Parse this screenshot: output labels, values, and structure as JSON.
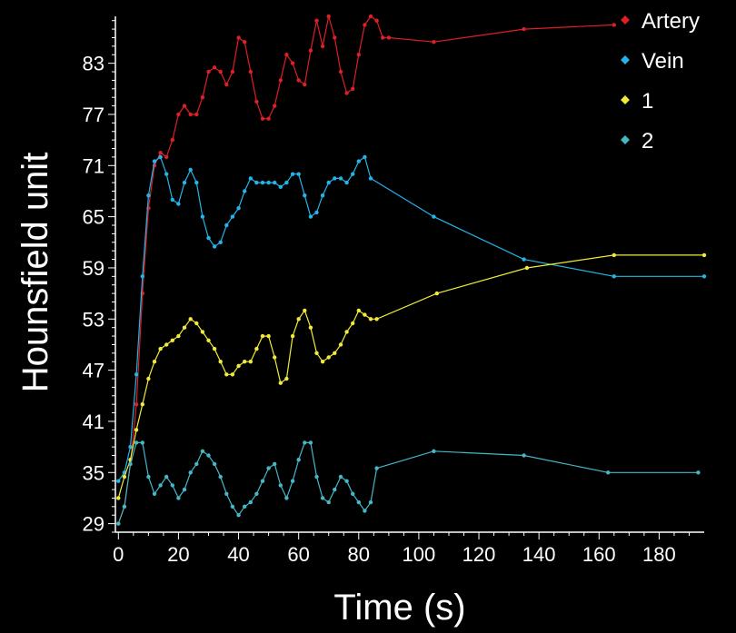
{
  "chart_data": {
    "type": "line",
    "title": "",
    "xlabel": "Time (s)",
    "ylabel": "Hounsfield unit",
    "xlim": [
      -1,
      195
    ],
    "ylim": [
      28,
      88.5
    ],
    "xticks": [
      0,
      20,
      40,
      60,
      80,
      100,
      120,
      140,
      160,
      180
    ],
    "yticks": [
      29,
      35,
      41,
      47,
      53,
      59,
      65,
      71,
      77,
      83
    ],
    "xtick_labels": [
      "0",
      "20",
      "40",
      "60",
      "80",
      "100",
      "120",
      "140",
      "160",
      "180"
    ],
    "ytick_labels": [
      "29",
      "35",
      "41",
      "47",
      "53",
      "59",
      "65",
      "71",
      "77",
      "83"
    ],
    "grid": false,
    "legend_position": "top-right",
    "background": "#000000",
    "series": [
      {
        "name": "Artery",
        "color": "#dd1f26",
        "points": [
          [
            0,
            29
          ],
          [
            2,
            31
          ],
          [
            4,
            36
          ],
          [
            6,
            43
          ],
          [
            8,
            56
          ],
          [
            10,
            66
          ],
          [
            12,
            71
          ],
          [
            14,
            72.5
          ],
          [
            16,
            72
          ],
          [
            18,
            74
          ],
          [
            20,
            77
          ],
          [
            22,
            78
          ],
          [
            24,
            77
          ],
          [
            26,
            77
          ],
          [
            28,
            79
          ],
          [
            30,
            82
          ],
          [
            32,
            82.5
          ],
          [
            34,
            82
          ],
          [
            36,
            80.5
          ],
          [
            38,
            82
          ],
          [
            40,
            86
          ],
          [
            42,
            85.5
          ],
          [
            44,
            82
          ],
          [
            46,
            78.5
          ],
          [
            48,
            76.5
          ],
          [
            50,
            76.5
          ],
          [
            52,
            78
          ],
          [
            54,
            81
          ],
          [
            56,
            84
          ],
          [
            58,
            83
          ],
          [
            60,
            81
          ],
          [
            62,
            80.5
          ],
          [
            64,
            84.5
          ],
          [
            66,
            88
          ],
          [
            68,
            85
          ],
          [
            70,
            88.5
          ],
          [
            72,
            86
          ],
          [
            74,
            82
          ],
          [
            76,
            79.5
          ],
          [
            78,
            80
          ],
          [
            80,
            84
          ],
          [
            82,
            87.5
          ],
          [
            84,
            88.5
          ],
          [
            86,
            88
          ],
          [
            88,
            86
          ],
          [
            90,
            86
          ],
          [
            105,
            85.5
          ],
          [
            135,
            87
          ],
          [
            165,
            87.5
          ]
        ]
      },
      {
        "name": "Vein",
        "color": "#23b4e8",
        "points": [
          [
            0,
            34
          ],
          [
            2,
            35
          ],
          [
            4,
            38
          ],
          [
            6,
            46.5
          ],
          [
            8,
            58
          ],
          [
            10,
            67.5
          ],
          [
            12,
            71.5
          ],
          [
            14,
            72
          ],
          [
            16,
            70
          ],
          [
            18,
            67
          ],
          [
            20,
            66.5
          ],
          [
            22,
            69
          ],
          [
            24,
            70.5
          ],
          [
            26,
            69
          ],
          [
            28,
            65
          ],
          [
            30,
            62.5
          ],
          [
            32,
            61.5
          ],
          [
            34,
            62
          ],
          [
            36,
            64
          ],
          [
            38,
            65
          ],
          [
            40,
            66
          ],
          [
            42,
            68
          ],
          [
            44,
            69.5
          ],
          [
            46,
            69
          ],
          [
            48,
            69
          ],
          [
            50,
            69
          ],
          [
            52,
            69
          ],
          [
            54,
            68.5
          ],
          [
            56,
            69
          ],
          [
            58,
            70
          ],
          [
            60,
            70
          ],
          [
            62,
            67.5
          ],
          [
            64,
            65
          ],
          [
            66,
            65.5
          ],
          [
            68,
            67.5
          ],
          [
            70,
            69
          ],
          [
            72,
            69.5
          ],
          [
            74,
            69.5
          ],
          [
            76,
            69
          ],
          [
            78,
            70
          ],
          [
            80,
            71.5
          ],
          [
            82,
            72
          ],
          [
            84,
            69.5
          ],
          [
            105,
            65
          ],
          [
            135,
            60
          ],
          [
            165,
            58
          ],
          [
            195,
            58
          ]
        ]
      },
      {
        "name": "1",
        "color": "#f2ea3a",
        "points": [
          [
            0,
            32
          ],
          [
            2,
            34.5
          ],
          [
            4,
            36.5
          ],
          [
            6,
            40
          ],
          [
            8,
            43
          ],
          [
            10,
            46
          ],
          [
            12,
            48
          ],
          [
            14,
            49.5
          ],
          [
            16,
            50
          ],
          [
            18,
            50.5
          ],
          [
            20,
            51
          ],
          [
            22,
            52
          ],
          [
            24,
            53
          ],
          [
            26,
            52.5
          ],
          [
            28,
            51.5
          ],
          [
            30,
            50.5
          ],
          [
            32,
            49.5
          ],
          [
            34,
            48
          ],
          [
            36,
            46.5
          ],
          [
            38,
            46.5
          ],
          [
            40,
            47.5
          ],
          [
            42,
            48
          ],
          [
            44,
            48
          ],
          [
            46,
            49.5
          ],
          [
            48,
            51
          ],
          [
            50,
            51
          ],
          [
            52,
            48.5
          ],
          [
            54,
            45.5
          ],
          [
            56,
            46
          ],
          [
            58,
            51
          ],
          [
            60,
            53
          ],
          [
            62,
            54
          ],
          [
            64,
            52
          ],
          [
            66,
            49
          ],
          [
            68,
            48
          ],
          [
            70,
            48.5
          ],
          [
            72,
            49
          ],
          [
            74,
            50
          ],
          [
            76,
            51.5
          ],
          [
            78,
            52.5
          ],
          [
            80,
            54
          ],
          [
            82,
            53.5
          ],
          [
            84,
            53
          ],
          [
            86,
            53
          ],
          [
            106,
            56
          ],
          [
            136,
            59
          ],
          [
            165,
            60.5
          ],
          [
            195,
            60.5
          ]
        ]
      },
      {
        "name": "2",
        "color": "#45b7c6",
        "points": [
          [
            0,
            29
          ],
          [
            2,
            31
          ],
          [
            4,
            36
          ],
          [
            6,
            38.5
          ],
          [
            8,
            38.5
          ],
          [
            10,
            34.5
          ],
          [
            12,
            32.5
          ],
          [
            14,
            33.5
          ],
          [
            16,
            34.5
          ],
          [
            18,
            33.5
          ],
          [
            20,
            32
          ],
          [
            22,
            33
          ],
          [
            24,
            35
          ],
          [
            26,
            36
          ],
          [
            28,
            37.5
          ],
          [
            30,
            37
          ],
          [
            32,
            36
          ],
          [
            34,
            34.5
          ],
          [
            36,
            32.5
          ],
          [
            38,
            31
          ],
          [
            40,
            30
          ],
          [
            42,
            31
          ],
          [
            44,
            31.5
          ],
          [
            46,
            32.5
          ],
          [
            48,
            34
          ],
          [
            50,
            35.5
          ],
          [
            52,
            36
          ],
          [
            54,
            33.5
          ],
          [
            56,
            32
          ],
          [
            58,
            34
          ],
          [
            60,
            36.5
          ],
          [
            62,
            38.5
          ],
          [
            64,
            38.5
          ],
          [
            66,
            34.5
          ],
          [
            68,
            32
          ],
          [
            70,
            31.5
          ],
          [
            72,
            33
          ],
          [
            74,
            34.5
          ],
          [
            76,
            34
          ],
          [
            78,
            32.5
          ],
          [
            80,
            31.5
          ],
          [
            82,
            30.5
          ],
          [
            84,
            31.5
          ],
          [
            86,
            35.5
          ],
          [
            105,
            37.5
          ],
          [
            135,
            37
          ],
          [
            163,
            35
          ],
          [
            193,
            35
          ]
        ]
      }
    ]
  }
}
